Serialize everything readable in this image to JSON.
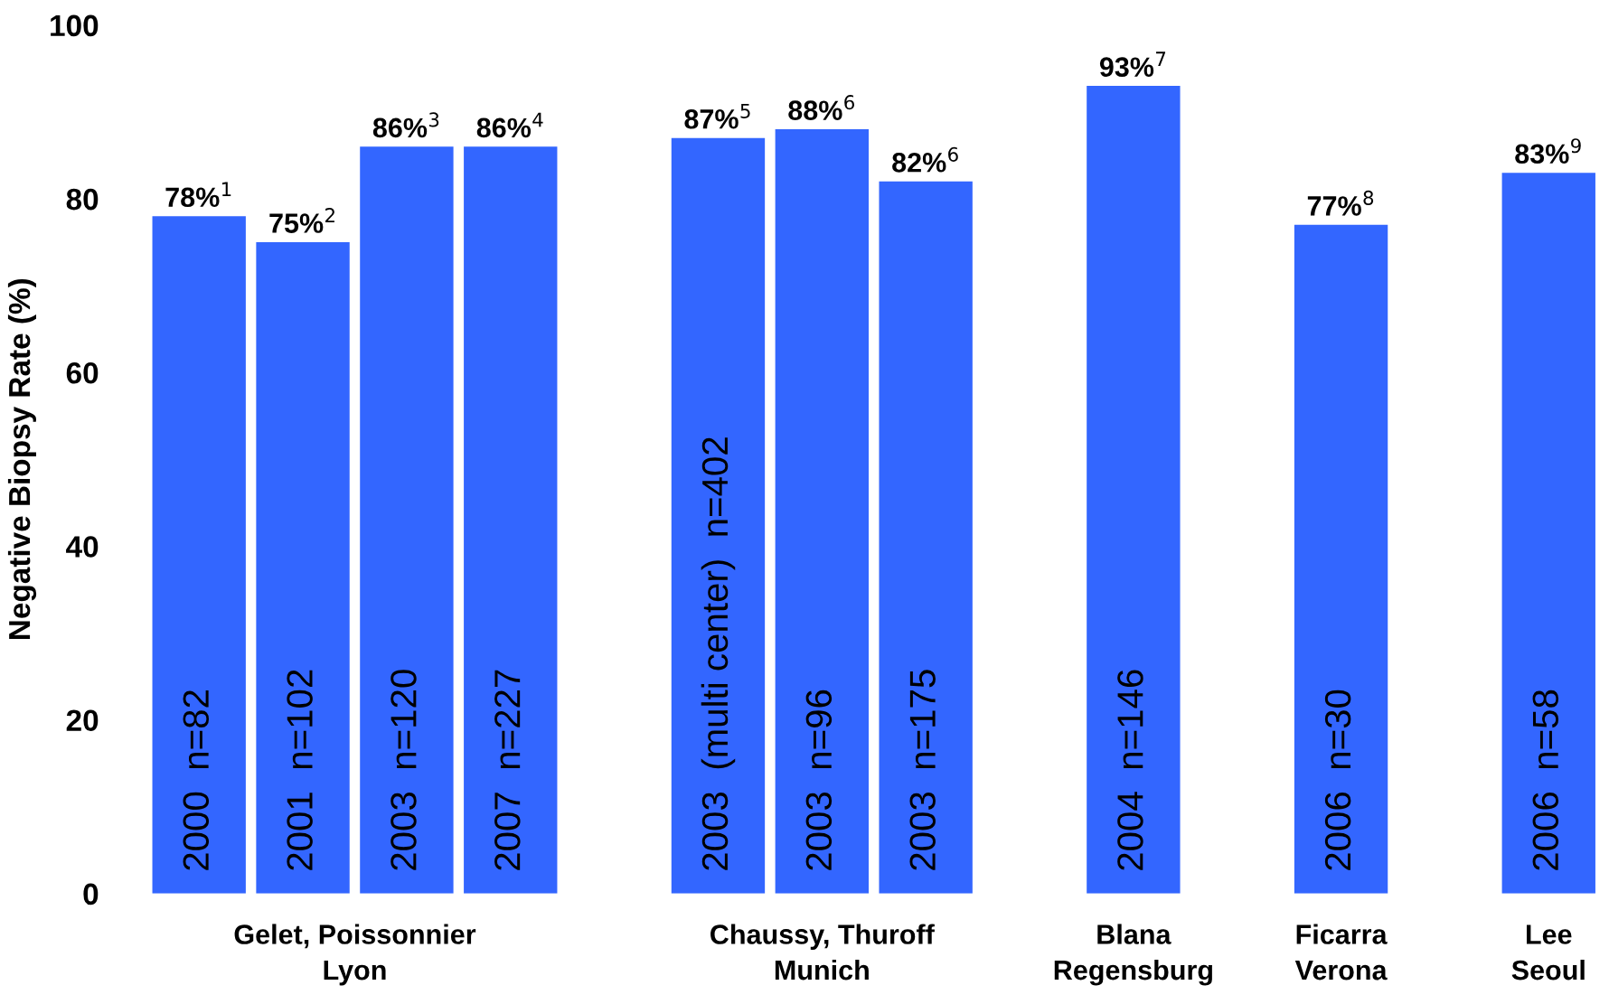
{
  "chart_data": {
    "type": "bar",
    "ylabel": "Negative Biopsy Rate (%)",
    "categories": [
      "2000  n=82",
      "2001  n=102",
      "2003  n=120",
      "2007  n=227",
      null,
      "2003  (multi center)  n=402",
      "2003  n=96",
      "2003  n=175",
      null,
      "2004  n=146",
      null,
      "2006  n=30",
      null,
      "2006  n=58"
    ],
    "values": [
      78,
      75,
      86,
      86,
      null,
      87,
      88,
      82,
      null,
      93,
      null,
      77,
      null,
      83
    ],
    "value_labels": [
      "78%$^{1}$",
      "75%$^{2}$",
      "86%$^{3}$",
      "86%$^{4}$",
      null,
      "87%$^{5}$",
      "88%$^{6}$",
      "82%$^{6}$",
      null,
      "93%$^{7}$",
      null,
      "77%$^{8}$",
      null,
      "83%$^{9}$"
    ],
    "color": "#3366ff",
    "ylim": [
      0,
      100
    ],
    "yticks": [
      0,
      20,
      40,
      60,
      80,
      100
    ],
    "grid": false,
    "annotations": [
      "Gelet, Poissonnier\nLyon",
      "Chaussy, Thuroff\nMunich",
      "Blana\nRegensburg",
      "Ficarra\nVerona",
      "Lee\nSeoul"
    ]
  }
}
